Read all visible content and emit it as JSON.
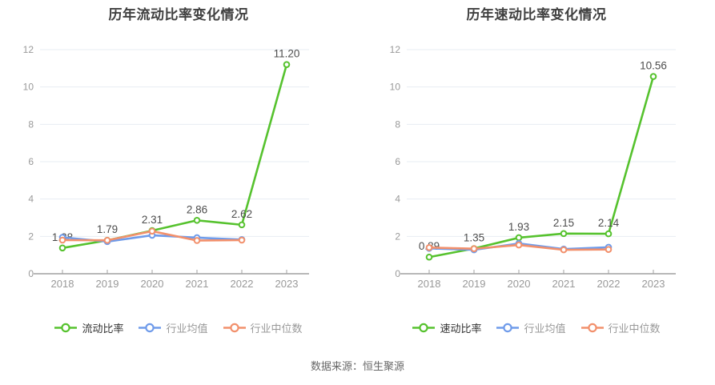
{
  "page": {
    "background": "#ffffff",
    "source_note": "数据来源：恒生聚源"
  },
  "colors": {
    "grid": "#e7edf3",
    "axis_line": "#a0a0a0",
    "tick_label": "#999999",
    "data_label": "#4d4d4d",
    "title": "#404040",
    "source": "#666666",
    "marker_fill": "#ffffff"
  },
  "chart_data": [
    {
      "type": "line",
      "title": "历年流动比率变化情况",
      "categories": [
        "2018",
        "2019",
        "2020",
        "2021",
        "2022",
        "2023"
      ],
      "ylim": [
        0,
        12
      ],
      "y_ticks": [
        0,
        2,
        4,
        6,
        8,
        10,
        12
      ],
      "grid": "on",
      "legend_position": "bottom",
      "series": [
        {
          "name": "流动比率",
          "color": "#56c22e",
          "legend_text_color": "#333333",
          "values": [
            1.38,
            1.79,
            2.31,
            2.86,
            2.62,
            11.2
          ],
          "labels": [
            "1.38",
            "1.79",
            "2.31",
            "2.86",
            "2.62",
            "11.20"
          ]
        },
        {
          "name": "行业均值",
          "color": "#6f9bea",
          "legend_text_color": "#999999",
          "values": [
            1.95,
            1.72,
            2.06,
            1.93,
            1.83
          ]
        },
        {
          "name": "行业中位数",
          "color": "#f2906c",
          "legend_text_color": "#999999",
          "values": [
            1.8,
            1.79,
            2.28,
            1.78,
            1.8
          ]
        }
      ]
    },
    {
      "type": "line",
      "title": "历年速动比率变化情况",
      "categories": [
        "2018",
        "2019",
        "2020",
        "2021",
        "2022",
        "2023"
      ],
      "ylim": [
        0,
        12
      ],
      "y_ticks": [
        0,
        2,
        4,
        6,
        8,
        10,
        12
      ],
      "grid": "on",
      "legend_position": "bottom",
      "series": [
        {
          "name": "速动比率",
          "color": "#56c22e",
          "legend_text_color": "#333333",
          "values": [
            0.89,
            1.35,
            1.93,
            2.15,
            2.14,
            10.56
          ],
          "labels": [
            "0.89",
            "1.35",
            "1.93",
            "2.15",
            "2.14",
            "10.56"
          ]
        },
        {
          "name": "行业均值",
          "color": "#6f9bea",
          "legend_text_color": "#999999",
          "values": [
            1.36,
            1.28,
            1.62,
            1.32,
            1.42
          ]
        },
        {
          "name": "行业中位数",
          "color": "#f2906c",
          "legend_text_color": "#999999",
          "values": [
            1.4,
            1.34,
            1.54,
            1.28,
            1.3
          ]
        }
      ]
    }
  ]
}
